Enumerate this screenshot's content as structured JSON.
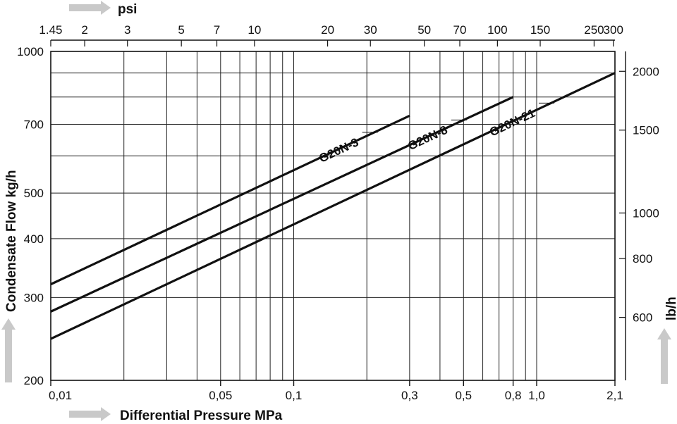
{
  "chart_data": {
    "type": "line",
    "x_axis": {
      "label": "Differential Pressure MPa",
      "scale": "log",
      "range": [
        0.01,
        2.1
      ],
      "tick_values": [
        0.01,
        0.05,
        0.1,
        0.3,
        0.5,
        0.8,
        1.0,
        2.1
      ],
      "tick_labels": [
        "0,01",
        "0,05",
        "0,1",
        "0,3",
        "0,5",
        "0,8",
        "1,0",
        "2,1"
      ],
      "grid_values": [
        0.02,
        0.03,
        0.04,
        0.05,
        0.06,
        0.07,
        0.08,
        0.09,
        0.1,
        0.2,
        0.3,
        0.4,
        0.5,
        0.6,
        0.7,
        0.8,
        0.9,
        1.0
      ]
    },
    "x2_axis": {
      "label": "psi",
      "scale": "log",
      "tick_values": [
        1.45,
        2,
        3,
        5,
        7,
        10,
        20,
        30,
        50,
        70,
        100,
        150,
        250,
        300
      ],
      "tick_labels": [
        "1.45",
        "2",
        "3",
        "5",
        "7",
        "10",
        "20",
        "30",
        "50",
        "70",
        "100",
        "150",
        "250",
        "300"
      ]
    },
    "y_axis": {
      "label": "Condensate Flow kg/h",
      "scale": "log",
      "range": [
        200,
        1000
      ],
      "tick_values": [
        200,
        300,
        400,
        500,
        700,
        1000
      ],
      "tick_labels": [
        "200",
        "300",
        "400",
        "500",
        "700",
        "1000"
      ],
      "grid_values": [
        300,
        400,
        500,
        600,
        700,
        800,
        900
      ]
    },
    "y2_axis": {
      "label": "lb/h",
      "scale": "log",
      "tick_values": [
        600,
        800,
        1000,
        1500,
        2000
      ],
      "tick_labels": [
        "600",
        "800",
        "1000",
        "1500",
        "2000"
      ]
    },
    "grid": true,
    "series": [
      {
        "name": "G20N-3",
        "x": [
          0.01,
          0.3
        ],
        "y": [
          320,
          730
        ]
      },
      {
        "name": "G20N-8",
        "x": [
          0.01,
          0.8
        ],
        "y": [
          280,
          800
        ]
      },
      {
        "name": "G20N-21",
        "x": [
          0.01,
          2.1
        ],
        "y": [
          245,
          900
        ]
      }
    ],
    "colors": {
      "line": "#111111",
      "grid": "#222222",
      "arrow": "#c9c9c9"
    }
  }
}
